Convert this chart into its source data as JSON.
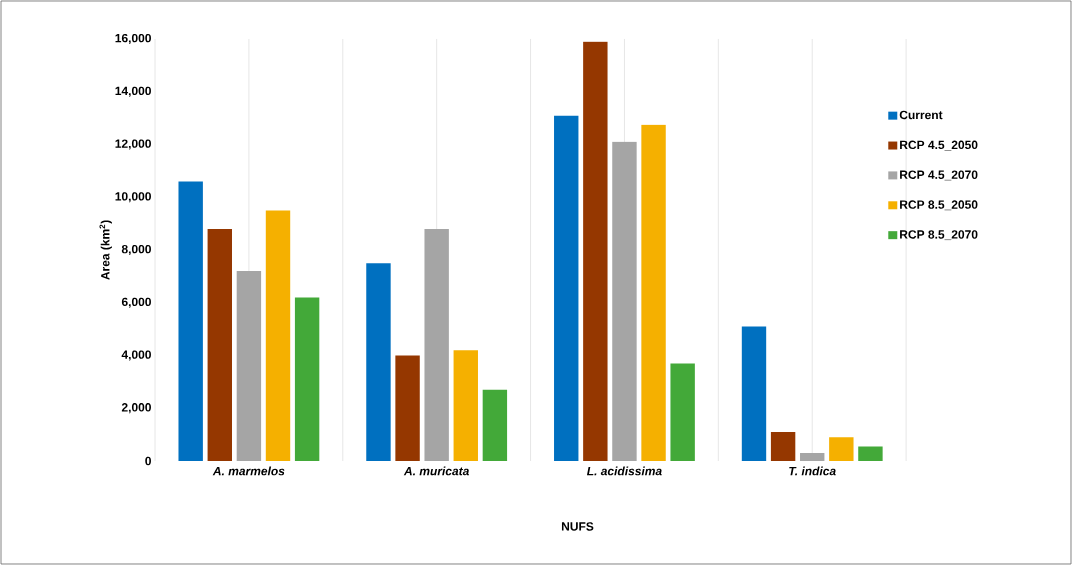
{
  "chart_data": {
    "type": "bar",
    "xlabel": "NUFS",
    "ylabel": "Area (km$^{2}$)",
    "categories": [
      "A. marmelos",
      "A. muricata",
      "L. acidissima",
      "T. indica"
    ],
    "series": [
      {
        "name": "Current",
        "color": "#0070c0",
        "values": [
          10600,
          7500,
          13100,
          5100
        ]
      },
      {
        "name": "RCP 4.5_2050",
        "color": "#953700",
        "values": [
          8800,
          4000,
          15900,
          1100
        ]
      },
      {
        "name": "RCP 4.5_2070",
        "color": "#a5a5a5",
        "values": [
          7200,
          8800,
          12100,
          300
        ]
      },
      {
        "name": "RCP 8.5_2050",
        "color": "#f5b000",
        "values": [
          9500,
          4200,
          12750,
          900
        ]
      },
      {
        "name": "RCP 8.5_2070",
        "color": "#43a939",
        "values": [
          6200,
          2700,
          3700,
          550
        ]
      }
    ],
    "ylim": [
      0,
      16000
    ],
    "yticks": [
      0,
      {
        "value": 2000,
        "label": "2,000"
      },
      {
        "value": 4000,
        "label": "4,000"
      },
      {
        "value": 6000,
        "label": "6,000"
      },
      {
        "value": 8000,
        "label": "8,000"
      },
      {
        "value": 10000,
        "label": "10,000"
      },
      {
        "value": 12000,
        "label": "12,000"
      },
      {
        "value": 14000,
        "label": "14,000"
      },
      {
        "value": 16000,
        "label": "16,000"
      }
    ],
    "grid": "x",
    "legend": "right"
  }
}
